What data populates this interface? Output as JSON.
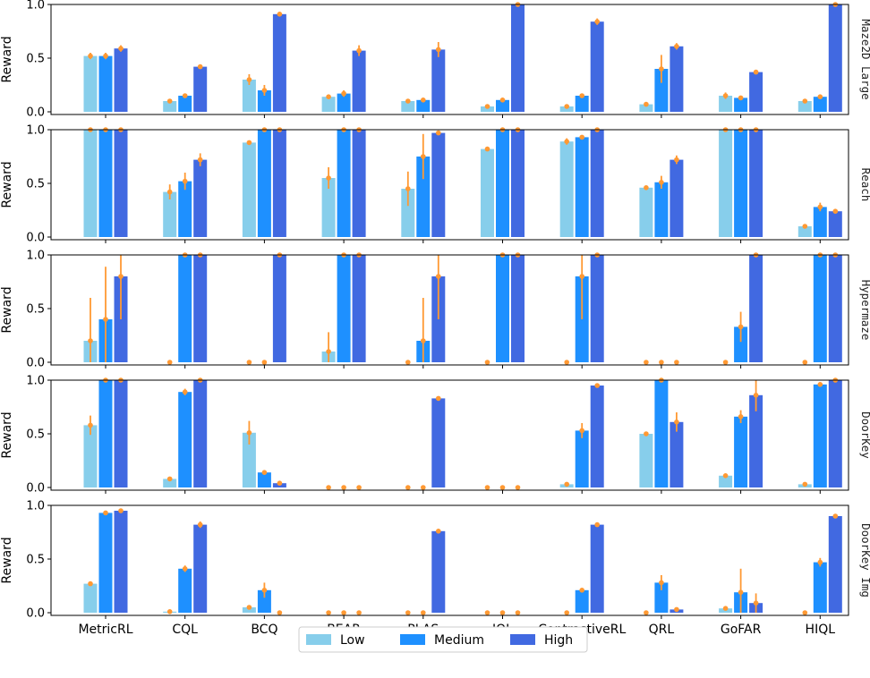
{
  "chart_data": {
    "type": "bar",
    "categories": [
      "MetricRL",
      "CQL",
      "BCQ",
      "BEAR",
      "PLAS",
      "IQL",
      "ContrastiveRL",
      "QRL",
      "GoFAR",
      "HIQL"
    ],
    "ylabel": "Reward",
    "ylim": [
      0,
      1
    ],
    "yticks": [
      "0.0",
      "0.5",
      "1.0"
    ],
    "legend": {
      "placement": "bottom-center",
      "entries": [
        "Low",
        "Medium",
        "High"
      ]
    },
    "series_colors": [
      "#87ceeb",
      "#1e90ff",
      "#4169e1"
    ],
    "error_color": "#ff9933",
    "panels": [
      {
        "title": "Maze2D Large",
        "series": [
          {
            "name": "Low",
            "values": [
              0.52,
              0.1,
              0.3,
              0.14,
              0.1,
              0.05,
              0.05,
              0.07,
              0.15,
              0.1
            ],
            "errors": [
              0.03,
              0.01,
              0.05,
              0.01,
              0.01,
              0.01,
              0.01,
              0.01,
              0.03,
              0.01
            ]
          },
          {
            "name": "Medium",
            "values": [
              0.52,
              0.15,
              0.2,
              0.17,
              0.11,
              0.11,
              0.15,
              0.4,
              0.13,
              0.14
            ],
            "errors": [
              0.03,
              0.01,
              0.05,
              0.03,
              0.01,
              0.01,
              0.01,
              0.13,
              0.01,
              0.01
            ]
          },
          {
            "name": "High",
            "values": [
              0.59,
              0.42,
              0.91,
              0.57,
              0.58,
              1.0,
              0.84,
              0.61,
              0.37,
              1.0
            ],
            "errors": [
              0.03,
              0.01,
              0.02,
              0.05,
              0.07,
              0.0,
              0.03,
              0.03,
              0.01,
              0.0
            ]
          }
        ]
      },
      {
        "title": "Reach",
        "series": [
          {
            "name": "Low",
            "values": [
              1.0,
              0.42,
              0.88,
              0.55,
              0.45,
              0.82,
              0.89,
              0.46,
              1.0,
              0.1
            ],
            "errors": [
              0.0,
              0.07,
              0.01,
              0.1,
              0.16,
              0.02,
              0.03,
              0.01,
              0.0,
              0.02
            ]
          },
          {
            "name": "Medium",
            "values": [
              1.0,
              0.52,
              1.0,
              1.0,
              0.75,
              1.0,
              0.93,
              0.51,
              1.0,
              0.28
            ],
            "errors": [
              0.0,
              0.08,
              0.0,
              0.0,
              0.21,
              0.0,
              0.01,
              0.06,
              0.0,
              0.04
            ]
          },
          {
            "name": "High",
            "values": [
              1.0,
              0.72,
              1.0,
              1.0,
              0.97,
              1.0,
              1.0,
              0.72,
              1.0,
              0.24
            ],
            "errors": [
              0.0,
              0.06,
              0.0,
              0.0,
              0.02,
              0.0,
              0.0,
              0.04,
              0.0,
              0.02
            ]
          }
        ]
      },
      {
        "title": "Hypermaze",
        "series": [
          {
            "name": "Low",
            "values": [
              0.2,
              0.0,
              0.0,
              0.1,
              0.0,
              0.0,
              0.0,
              0.0,
              0.0,
              0.0
            ],
            "errors": [
              0.4,
              0.0,
              0.0,
              0.18,
              0.0,
              0.0,
              0.0,
              0.0,
              0.0,
              0.0
            ]
          },
          {
            "name": "Medium",
            "values": [
              0.4,
              1.0,
              0.0,
              1.0,
              0.2,
              1.0,
              0.8,
              0.0,
              0.33,
              1.0
            ],
            "errors": [
              0.49,
              0.0,
              0.0,
              0.0,
              0.4,
              0.0,
              0.4,
              0.0,
              0.14,
              0.0
            ]
          },
          {
            "name": "High",
            "values": [
              0.8,
              1.0,
              1.0,
              1.0,
              0.8,
              1.0,
              1.0,
              0.0,
              1.0,
              1.0
            ],
            "errors": [
              0.4,
              0.0,
              0.0,
              0.0,
              0.4,
              0.0,
              0.0,
              0.0,
              0.0,
              0.0
            ]
          }
        ]
      },
      {
        "title": "DoorKey",
        "series": [
          {
            "name": "Low",
            "values": [
              0.58,
              0.08,
              0.51,
              0.0,
              0.0,
              0.0,
              0.03,
              0.5,
              0.11,
              0.03
            ],
            "errors": [
              0.09,
              0.01,
              0.11,
              0.0,
              0.0,
              0.0,
              0.01,
              0.01,
              0.02,
              0.01
            ]
          },
          {
            "name": "Medium",
            "values": [
              1.0,
              0.89,
              0.14,
              0.0,
              0.0,
              0.0,
              0.53,
              1.0,
              0.66,
              0.96
            ],
            "errors": [
              0.0,
              0.03,
              0.02,
              0.0,
              0.0,
              0.0,
              0.07,
              0.0,
              0.06,
              0.01
            ]
          },
          {
            "name": "High",
            "values": [
              1.0,
              1.0,
              0.04,
              0.0,
              0.83,
              0.0,
              0.95,
              0.61,
              0.86,
              1.0
            ],
            "errors": [
              0.0,
              0.0,
              0.01,
              0.0,
              0.01,
              0.0,
              0.01,
              0.09,
              0.15,
              0.0
            ]
          }
        ]
      },
      {
        "title": "DoorKey Img",
        "series": [
          {
            "name": "Low",
            "values": [
              0.27,
              0.01,
              0.05,
              0.0,
              0.0,
              0.0,
              0.0,
              0.0,
              0.04,
              0.0
            ],
            "errors": [
              0.02,
              0.0,
              0.01,
              0.0,
              0.0,
              0.0,
              0.0,
              0.0,
              0.01,
              0.0
            ]
          },
          {
            "name": "Medium",
            "values": [
              0.93,
              0.41,
              0.21,
              0.0,
              0.0,
              0.0,
              0.21,
              0.28,
              0.19,
              0.47
            ],
            "errors": [
              0.01,
              0.03,
              0.07,
              0.0,
              0.0,
              0.0,
              0.01,
              0.07,
              0.22,
              0.04
            ]
          },
          {
            "name": "High",
            "values": [
              0.95,
              0.82,
              0.0,
              0.0,
              0.76,
              0.0,
              0.82,
              0.03,
              0.09,
              0.9
            ],
            "errors": [
              0.0,
              0.03,
              0.0,
              0.0,
              0.01,
              0.0,
              0.01,
              0.01,
              0.09,
              0.01
            ]
          }
        ]
      }
    ]
  }
}
